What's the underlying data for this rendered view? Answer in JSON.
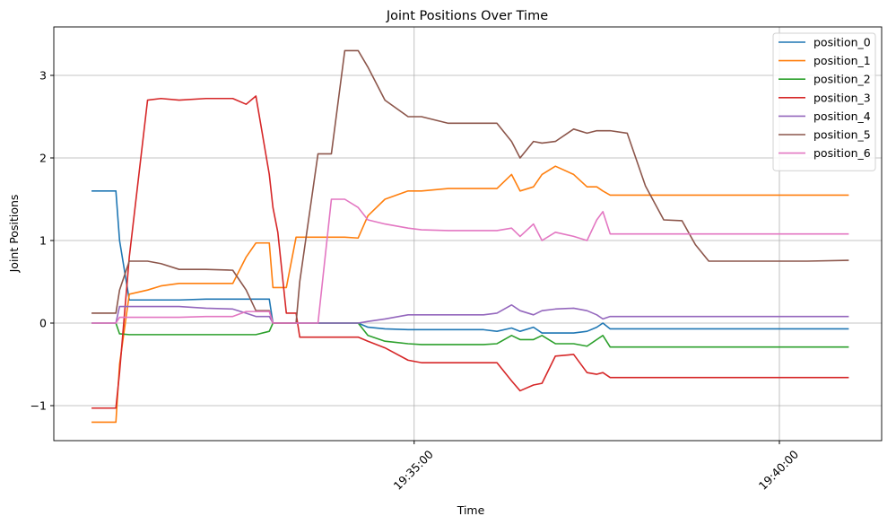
{
  "chart_data": {
    "type": "line",
    "title": "Joint Positions Over Time",
    "x_label": "Time",
    "y_label": "Joint Positions",
    "x": [
      "19:30:35",
      "19:30:55",
      "19:30:58",
      "19:31:06",
      "19:31:21",
      "19:31:32",
      "19:31:47",
      "19:32:09",
      "19:32:31",
      "19:32:42",
      "19:32:50",
      "19:33:01",
      "19:33:04",
      "19:33:08",
      "19:33:15",
      "19:33:23",
      "19:33:26",
      "19:33:41",
      "19:33:52",
      "19:34:03",
      "19:34:14",
      "19:34:22",
      "19:34:36",
      "19:34:55",
      "19:35:06",
      "19:35:28",
      "19:35:57",
      "19:36:08",
      "19:36:20",
      "19:36:27",
      "19:36:38",
      "19:36:45",
      "19:36:56",
      "19:37:11",
      "19:37:22",
      "19:37:30",
      "19:37:35",
      "19:37:41",
      "19:37:55",
      "19:38:10",
      "19:38:25",
      "19:38:40",
      "19:38:51",
      "19:39:02",
      "19:39:31",
      "19:40:23",
      "19:40:57"
    ],
    "xlim": [
      "19:30:04",
      "19:41:24"
    ],
    "xticks": [
      "19:35:00",
      "19:40:00"
    ],
    "ylim": [
      -1.424,
      3.587
    ],
    "yticks": [
      {
        "value": -1,
        "label": "−1"
      },
      0,
      1,
      2,
      3
    ],
    "grid": true,
    "legend": "upper-right",
    "series": [
      {
        "name": "position_0",
        "color": "#1f77b4",
        "values": [
          1.6,
          1.6,
          1.0,
          0.28,
          0.28,
          0.28,
          0.28,
          0.29,
          0.29,
          0.29,
          0.29,
          0.29,
          0.0,
          0.0,
          0.0,
          0.0,
          0.0,
          0.0,
          0.0,
          0.0,
          0.0,
          -0.05,
          -0.07,
          -0.08,
          -0.08,
          -0.08,
          -0.08,
          -0.1,
          -0.06,
          -0.1,
          -0.05,
          -0.12,
          -0.12,
          -0.12,
          -0.1,
          -0.05,
          0.0,
          -0.07,
          -0.07,
          -0.07,
          -0.07,
          -0.07,
          -0.07,
          -0.07,
          -0.07,
          -0.07,
          -0.07
        ]
      },
      {
        "name": "position_1",
        "color": "#ff7f0e",
        "values": [
          -1.2,
          -1.2,
          -0.5,
          0.35,
          0.4,
          0.45,
          0.48,
          0.48,
          0.48,
          0.8,
          0.97,
          0.97,
          0.43,
          0.43,
          0.43,
          1.04,
          1.04,
          1.04,
          1.04,
          1.04,
          1.03,
          1.3,
          1.5,
          1.6,
          1.6,
          1.63,
          1.63,
          1.63,
          1.8,
          1.6,
          1.65,
          1.8,
          1.9,
          1.8,
          1.65,
          1.65,
          1.6,
          1.55,
          1.55,
          1.55,
          1.55,
          1.55,
          1.55,
          1.55,
          1.55,
          1.55,
          1.55
        ]
      },
      {
        "name": "position_2",
        "color": "#2ca02c",
        "values": [
          0.0,
          0.0,
          -0.13,
          -0.14,
          -0.14,
          -0.14,
          -0.14,
          -0.14,
          -0.14,
          -0.14,
          -0.14,
          -0.1,
          0.0,
          0.0,
          0.0,
          0.0,
          0.0,
          0.0,
          0.0,
          0.0,
          0.0,
          -0.15,
          -0.22,
          -0.25,
          -0.26,
          -0.26,
          -0.26,
          -0.25,
          -0.15,
          -0.2,
          -0.2,
          -0.15,
          -0.25,
          -0.25,
          -0.28,
          -0.2,
          -0.15,
          -0.29,
          -0.29,
          -0.29,
          -0.29,
          -0.29,
          -0.29,
          -0.29,
          -0.29,
          -0.29,
          -0.29
        ]
      },
      {
        "name": "position_3",
        "color": "#d62728",
        "values": [
          -1.03,
          -1.03,
          -0.6,
          0.8,
          2.7,
          2.72,
          2.7,
          2.72,
          2.72,
          2.65,
          2.75,
          1.8,
          1.4,
          1.1,
          0.12,
          0.12,
          -0.17,
          -0.17,
          -0.17,
          -0.17,
          -0.17,
          -0.22,
          -0.3,
          -0.45,
          -0.48,
          -0.48,
          -0.48,
          -0.48,
          -0.7,
          -0.82,
          -0.75,
          -0.73,
          -0.4,
          -0.38,
          -0.6,
          -0.62,
          -0.6,
          -0.66,
          -0.66,
          -0.66,
          -0.66,
          -0.66,
          -0.66,
          -0.66,
          -0.66,
          -0.66,
          -0.66
        ]
      },
      {
        "name": "position_4",
        "color": "#9467bd",
        "values": [
          0.0,
          0.0,
          0.2,
          0.2,
          0.2,
          0.2,
          0.2,
          0.18,
          0.17,
          0.12,
          0.08,
          0.08,
          0.0,
          0.0,
          0.0,
          0.0,
          0.0,
          0.0,
          0.0,
          0.0,
          0.0,
          0.02,
          0.05,
          0.1,
          0.1,
          0.1,
          0.1,
          0.12,
          0.22,
          0.15,
          0.1,
          0.15,
          0.17,
          0.18,
          0.15,
          0.1,
          0.05,
          0.08,
          0.08,
          0.08,
          0.08,
          0.08,
          0.08,
          0.08,
          0.08,
          0.08,
          0.08
        ]
      },
      {
        "name": "position_5",
        "color": "#8c564b",
        "values": [
          0.12,
          0.12,
          0.4,
          0.75,
          0.75,
          0.72,
          0.65,
          0.65,
          0.64,
          0.4,
          0.15,
          0.15,
          0.0,
          0.0,
          0.0,
          0.0,
          0.5,
          2.05,
          2.05,
          3.3,
          3.3,
          3.1,
          2.7,
          2.5,
          2.5,
          2.42,
          2.42,
          2.42,
          2.2,
          2.0,
          2.2,
          2.18,
          2.2,
          2.35,
          2.3,
          2.33,
          2.33,
          2.33,
          2.3,
          1.66,
          1.25,
          1.24,
          0.95,
          0.75,
          0.75,
          0.75,
          0.76
        ]
      },
      {
        "name": "position_6",
        "color": "#e377c2",
        "values": [
          0.0,
          0.0,
          0.07,
          0.07,
          0.07,
          0.07,
          0.07,
          0.08,
          0.08,
          0.14,
          0.14,
          0.14,
          0.0,
          0.0,
          0.0,
          0.0,
          0.0,
          0.0,
          1.5,
          1.5,
          1.4,
          1.25,
          1.2,
          1.15,
          1.13,
          1.12,
          1.12,
          1.12,
          1.15,
          1.05,
          1.2,
          1.0,
          1.1,
          1.05,
          1.0,
          1.25,
          1.35,
          1.08,
          1.08,
          1.08,
          1.08,
          1.08,
          1.08,
          1.08,
          1.08,
          1.08,
          1.08
        ]
      }
    ]
  }
}
